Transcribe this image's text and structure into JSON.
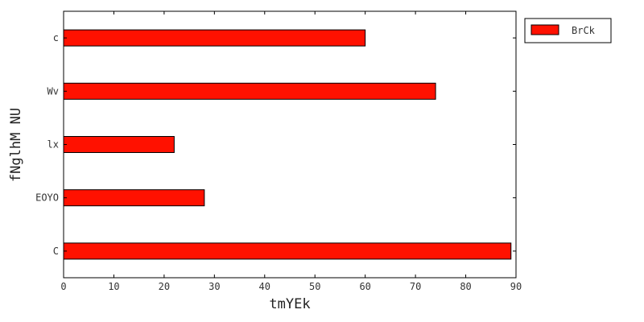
{
  "chart_data": {
    "type": "bar",
    "orientation": "horizontal",
    "categories": [
      "C",
      "EOYO",
      "lx",
      "Wv",
      "c"
    ],
    "series": [
      {
        "name": "BrCk",
        "values": [
          89,
          28,
          22,
          74,
          60
        ],
        "color": "#ff1100"
      }
    ],
    "xlabel": "tmYEk",
    "ylabel": "fNglhM NU",
    "xlim": [
      0,
      90
    ],
    "xticks": [
      0,
      10,
      20,
      30,
      40,
      50,
      60,
      70,
      80,
      90
    ],
    "grid": false,
    "legend_position": "outside-top-right"
  }
}
